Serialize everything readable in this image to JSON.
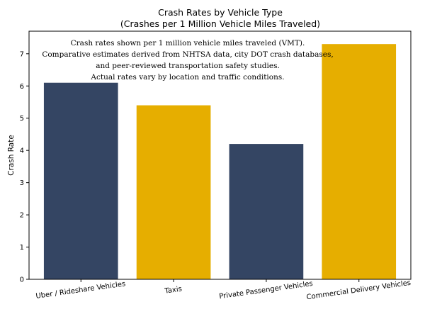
{
  "chart_data": {
    "type": "bar",
    "title": "Crash Rates by Vehicle Type",
    "subtitle": "(Crashes per 1 Million Vehicle Miles Traveled)",
    "xlabel": "",
    "ylabel": "Crash Rate",
    "ylim": [
      0,
      7.7
    ],
    "yticks": [
      0,
      1,
      2,
      3,
      4,
      5,
      6,
      7
    ],
    "categories": [
      "Uber / Rideshare Vehicles",
      "Taxis",
      "Private Passenger Vehicles",
      "Commercial Delivery Vehicles"
    ],
    "values": [
      6.1,
      5.4,
      4.2,
      7.3
    ],
    "colors": [
      "#344563",
      "#e6ae00",
      "#344563",
      "#e6ae00"
    ],
    "annotation": [
      "Crash rates shown per 1 million vehicle miles traveled (VMT).",
      "Comparative estimates derived from NHTSA data, city DOT crash databases,",
      "and peer-reviewed transportation safety studies.",
      "Actual rates vary by location and traffic conditions."
    ],
    "grid": false,
    "legend": "none"
  }
}
